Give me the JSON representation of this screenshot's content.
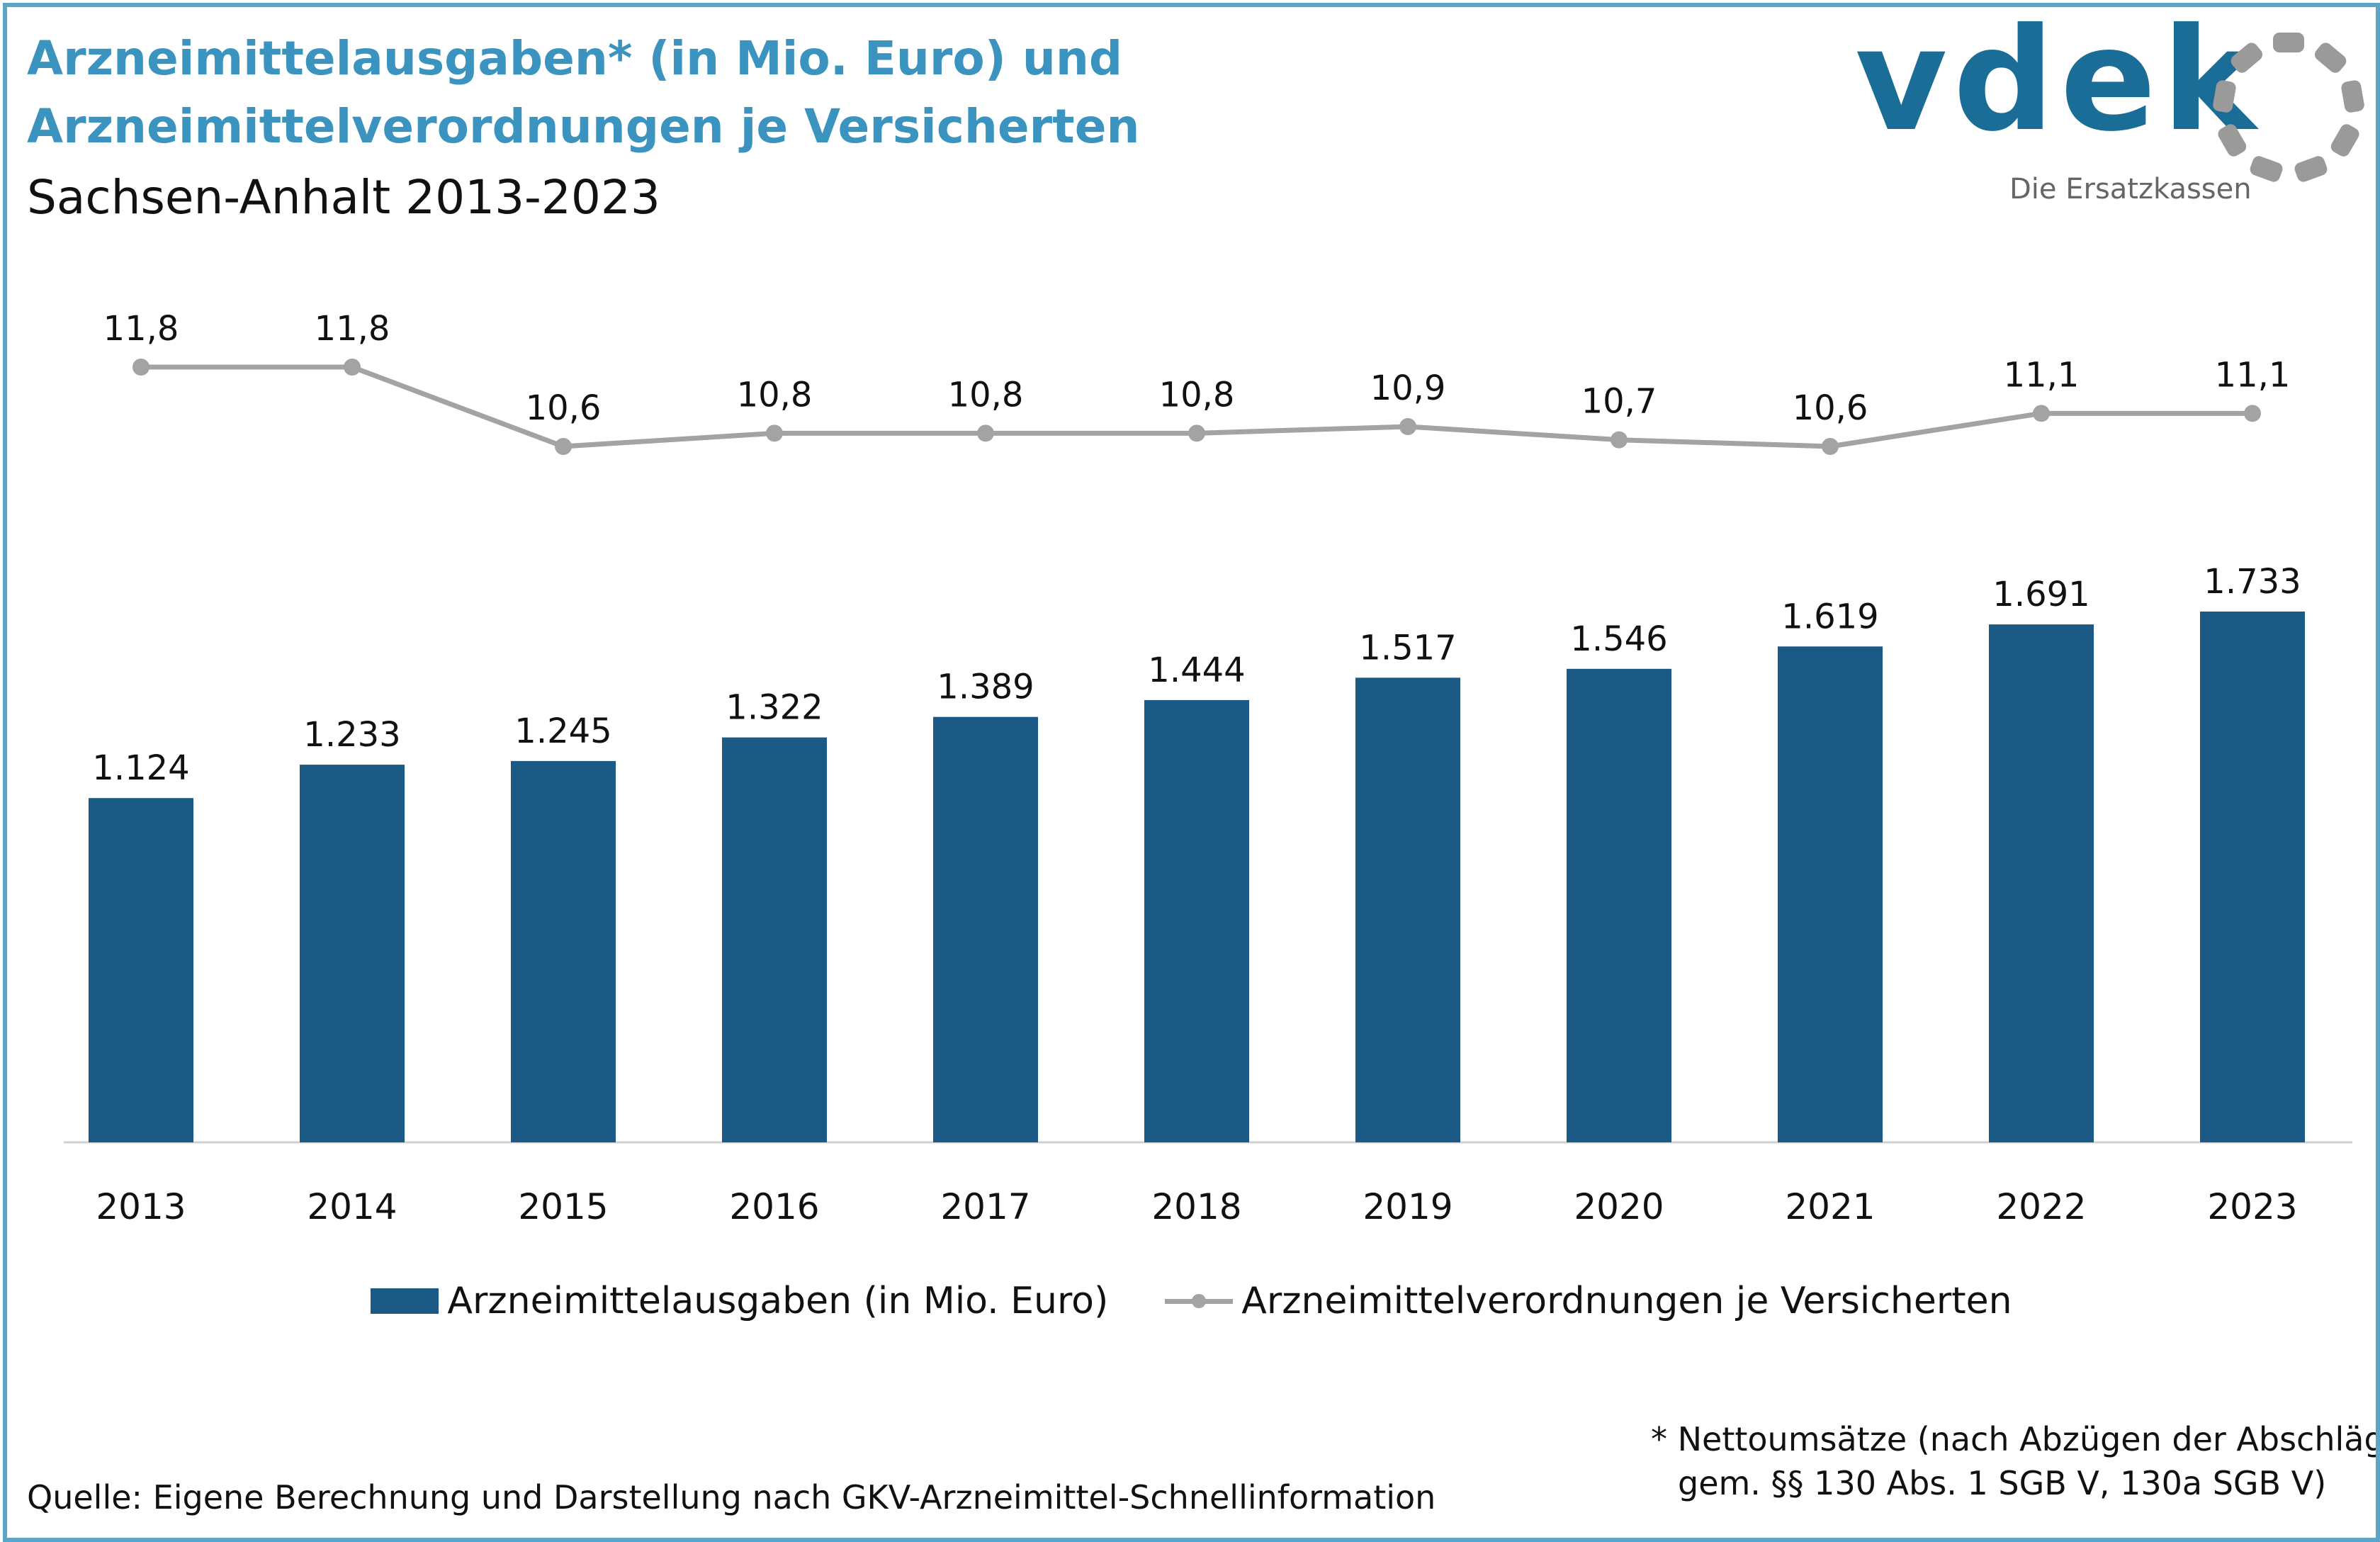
{
  "header": {
    "title_line1": "Arzneimittelausgaben* (in Mio. Euro) und",
    "title_line2": "Arzneimittelverordnungen je Versicherten",
    "subtitle": "Sachsen-Anhalt 2013-2023"
  },
  "logo": {
    "word": "vdek",
    "tagline": "Die Ersatzkassen"
  },
  "colors": {
    "title": "#3b93c0",
    "border": "#5aa5c8",
    "bar": "#1a5a85",
    "line": "#a3a3a3",
    "logo_blue": "#1a6d96",
    "logo_gray": "#9a9a9a"
  },
  "chart_data": {
    "type": "bar",
    "categories": [
      "2013",
      "2014",
      "2015",
      "2016",
      "2017",
      "2018",
      "2019",
      "2020",
      "2021",
      "2022",
      "2023"
    ],
    "series": [
      {
        "name": "Arzneimittelausgaben (in Mio. Euro)",
        "type": "bar",
        "values": [
          1124,
          1233,
          1245,
          1322,
          1389,
          1444,
          1517,
          1546,
          1619,
          1691,
          1733
        ],
        "labels": [
          "1.124",
          "1.233",
          "1.245",
          "1.322",
          "1.389",
          "1.444",
          "1.517",
          "1.546",
          "1.619",
          "1.691",
          "1.733"
        ]
      },
      {
        "name": "Arzneimittelverordnungen je Versicherten",
        "type": "line",
        "values": [
          11.8,
          11.8,
          10.6,
          10.8,
          10.8,
          10.8,
          10.9,
          10.7,
          10.6,
          11.1,
          11.1
        ],
        "labels": [
          "11,8",
          "11,8",
          "10,6",
          "10,8",
          "10,8",
          "10,8",
          "10,9",
          "10,7",
          "10,6",
          "11,1",
          "11,1"
        ]
      }
    ],
    "ylim_bar": [
      0,
      2000
    ],
    "ylim_line": [
      10.4,
      11.8
    ],
    "grid": false,
    "legend_position": "bottom"
  },
  "footnote": {
    "line1": "* Nettoumsätze (nach Abzügen der Abschläge",
    "line2": "gem. §§ 130 Abs. 1 SGB V, 130a SGB V)"
  },
  "source": "Quelle: Eigene Berechnung und Darstellung nach GKV-Arzneimittel-Schnellinformation"
}
